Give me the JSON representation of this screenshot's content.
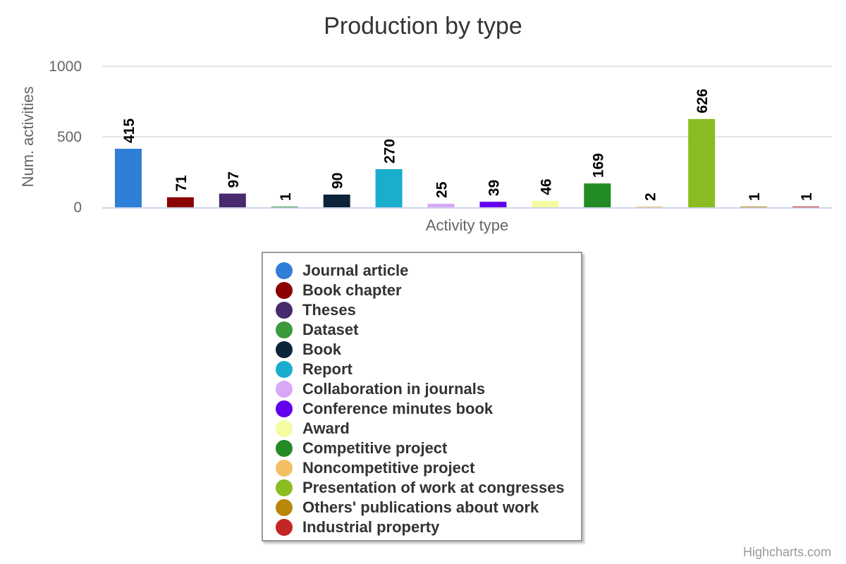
{
  "chart_data": {
    "type": "bar",
    "title": "Production by type",
    "xlabel": "Activity type",
    "ylabel": "Num. activities",
    "ylim": [
      0,
      1000
    ],
    "yticks": [
      0,
      500,
      1000
    ],
    "grid": true,
    "legend_placement": "bottom-center",
    "credits": "Highcharts.com",
    "series": [
      {
        "name": "Journal article",
        "value": 415,
        "color": "#2f7ed8"
      },
      {
        "name": "Book chapter",
        "value": 71,
        "color": "#8b0000"
      },
      {
        "name": "Theses",
        "value": 97,
        "color": "#492970"
      },
      {
        "name": "Dataset",
        "value": 1,
        "color": "#3b9a3b"
      },
      {
        "name": "Book",
        "value": 90,
        "color": "#0d233a"
      },
      {
        "name": "Report",
        "value": 270,
        "color": "#1aadce"
      },
      {
        "name": "Collaboration in journals",
        "value": 25,
        "color": "#d8a7f6"
      },
      {
        "name": "Conference minutes book",
        "value": 39,
        "color": "#6200ee"
      },
      {
        "name": "Award",
        "value": 46,
        "color": "#f5fca1"
      },
      {
        "name": "Competitive project",
        "value": 169,
        "color": "#238b23"
      },
      {
        "name": "Noncompetitive project",
        "value": 2,
        "color": "#f4bf64"
      },
      {
        "name": "Presentation of work at congresses",
        "value": 626,
        "color": "#8bbc21"
      },
      {
        "name": "Others' publications about work",
        "value": 1,
        "color": "#b8860b"
      },
      {
        "name": "Industrial property",
        "value": 1,
        "color": "#c42525"
      }
    ]
  }
}
